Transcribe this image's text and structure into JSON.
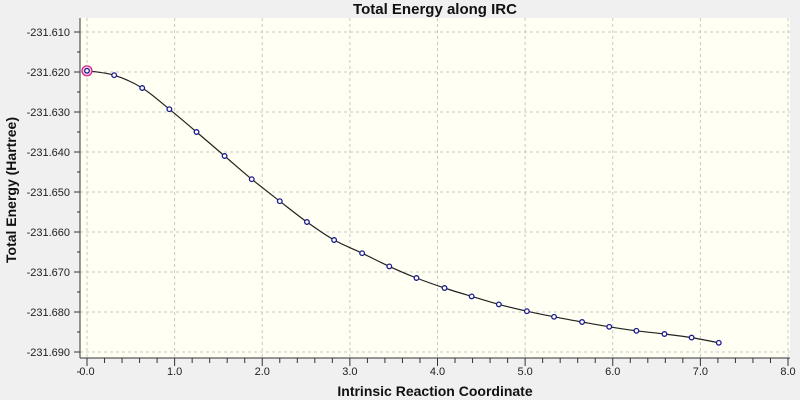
{
  "chart_data": {
    "type": "line",
    "title": "Total Energy along IRC",
    "xlabel": "Intrinsic Reaction Coordinate",
    "ylabel": "Total Energy (Hartree)",
    "xlim": [
      0,
      8
    ],
    "ylim": [
      -231.69,
      -231.61
    ],
    "xticks": [
      "0.0",
      "1.0",
      "2.0",
      "3.0",
      "4.0",
      "5.0",
      "6.0",
      "7.0",
      "8.0"
    ],
    "yticks": [
      "-231.610",
      "-231.620",
      "-231.630",
      "-231.640",
      "-231.650",
      "-231.660",
      "-231.670",
      "-231.680",
      "-231.690"
    ],
    "grid": true,
    "series": [
      {
        "name": "Total Energy",
        "color": "#1a1a8c",
        "line_color": "#222222",
        "highlight_color": "#d0208a",
        "highlight_index": 0,
        "x": [
          0.0,
          0.31,
          0.63,
          0.94,
          1.25,
          1.57,
          1.88,
          2.2,
          2.51,
          2.82,
          3.14,
          3.45,
          3.76,
          4.08,
          4.39,
          4.7,
          5.02,
          5.33,
          5.65,
          5.96,
          6.27,
          6.59,
          6.9,
          7.21
        ],
        "y": [
          -231.6197,
          -231.6208,
          -231.624,
          -231.6293,
          -231.635,
          -231.641,
          -231.6468,
          -231.6523,
          -231.6575,
          -231.662,
          -231.6653,
          -231.6686,
          -231.6715,
          -231.674,
          -231.6761,
          -231.6781,
          -231.6798,
          -231.6812,
          -231.6825,
          -231.6837,
          -231.6847,
          -231.6855,
          -231.6864,
          -231.6877
        ]
      }
    ]
  }
}
